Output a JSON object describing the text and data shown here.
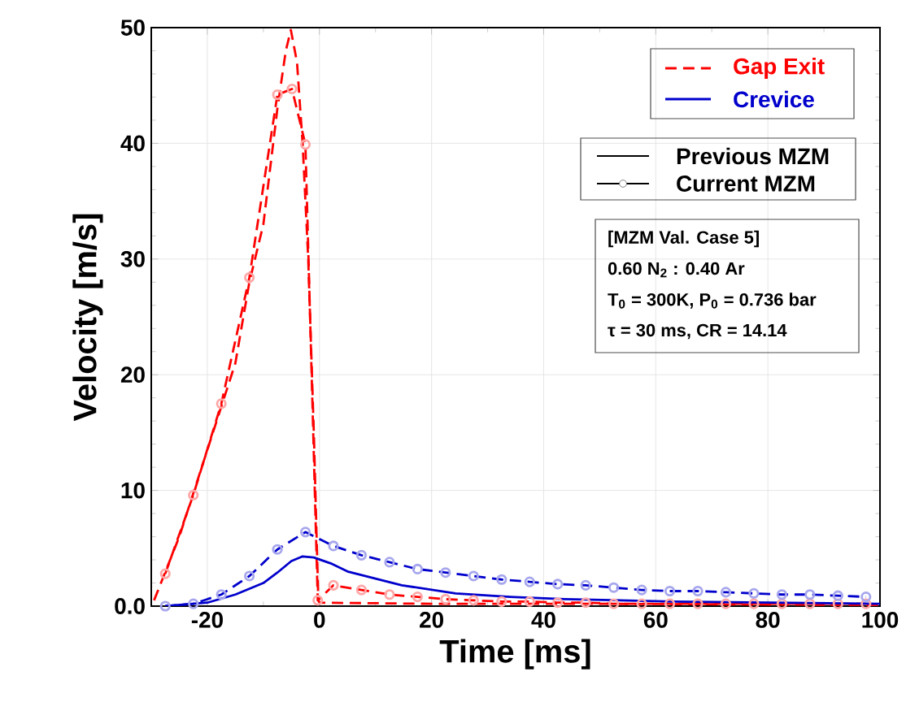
{
  "chart_data": {
    "type": "line",
    "xlabel": "Time [ms]",
    "ylabel": "Velocity [m/s]",
    "xlim": [
      -30,
      100
    ],
    "xticks": [
      -20,
      0,
      20,
      40,
      60,
      80,
      100
    ],
    "ylim": [
      0,
      50
    ],
    "yticks": [
      {
        "value": 0,
        "label": "0.0"
      },
      10,
      20,
      30,
      40,
      50
    ],
    "grid": true,
    "series": [
      {
        "color": "#ff0000",
        "line_style": "dashed",
        "marker": "none",
        "x": [
          -29.5,
          -25,
          -20,
          -15,
          -12.5,
          -10,
          -7.5,
          -6,
          -5.1,
          -4,
          -3,
          -2,
          -1,
          -0.2,
          0,
          20,
          50,
          100
        ],
        "values": [
          0.5,
          6,
          13.5,
          21,
          28,
          33,
          43,
          48,
          49.8,
          47,
          40,
          30,
          15,
          0.5,
          0.3,
          0.2,
          0.2,
          0.1
        ]
      },
      {
        "color": "#ff0000",
        "line_style": "dashed",
        "marker": "circle",
        "x": [
          -27.5,
          -22.5,
          -17.5,
          -12.5,
          -7.5,
          -4.9,
          -2.5,
          -0.3,
          2.5,
          7.5,
          12.5,
          17.5,
          22.5,
          27.5,
          32.5,
          37.5,
          42.5,
          47.5,
          52.5,
          57.5,
          62.5,
          67.5,
          72.5,
          77.5,
          82.5,
          87.5,
          92.5,
          97.5
        ],
        "values": [
          2.8,
          9.6,
          17.5,
          28.4,
          44.2,
          44.7,
          39.9,
          0.5,
          1.8,
          1.4,
          1.0,
          0.8,
          0.6,
          0.5,
          0.4,
          0.4,
          0.3,
          0.3,
          0.2,
          0.2,
          0.2,
          0.2,
          0.2,
          0.2,
          0.2,
          0.2,
          0.2,
          0.2
        ]
      },
      {
        "color": "#0000cc",
        "line_style": "solid",
        "marker": "none",
        "x": [
          -27.5,
          -20,
          -15,
          -10,
          -7.5,
          -5,
          -3,
          -1,
          2,
          5,
          14.7,
          24.3,
          34,
          43.7,
          63,
          100
        ],
        "values": [
          0,
          0.3,
          1.0,
          2.0,
          2.9,
          3.9,
          4.3,
          4.2,
          3.7,
          3.0,
          1.8,
          1.1,
          0.8,
          0.6,
          0.4,
          0.2
        ]
      },
      {
        "color": "#0000cc",
        "line_style": "dashed",
        "marker": "circle",
        "x": [
          -27.5,
          -22.5,
          -17.5,
          -12.5,
          -7.5,
          -2.5,
          2.5,
          7.5,
          12.5,
          17.5,
          22.5,
          27.5,
          32.5,
          37.5,
          42.5,
          47.5,
          52.5,
          57.5,
          62.5,
          67.5,
          72.5,
          77.5,
          82.5,
          87.5,
          92.5,
          97.5
        ],
        "values": [
          0,
          0.2,
          1.0,
          2.6,
          4.9,
          6.4,
          5.2,
          4.4,
          3.8,
          3.2,
          2.9,
          2.6,
          2.3,
          2.1,
          1.9,
          1.8,
          1.6,
          1.4,
          1.3,
          1.3,
          1.2,
          1.1,
          1.0,
          1.0,
          0.9,
          0.8
        ]
      }
    ],
    "annotations": [
      "Gap Exit",
      "Crevice",
      "Previous MZM",
      "Current MZM",
      "[MZM Val. Case 5]",
      "0.60 N$_{2}$ : 0.40 Ar",
      "T$_{0}$ = 300K, P$_{0}$ = 0.736 bar",
      "τ = 30 ms, CR = 14.14"
    ]
  }
}
